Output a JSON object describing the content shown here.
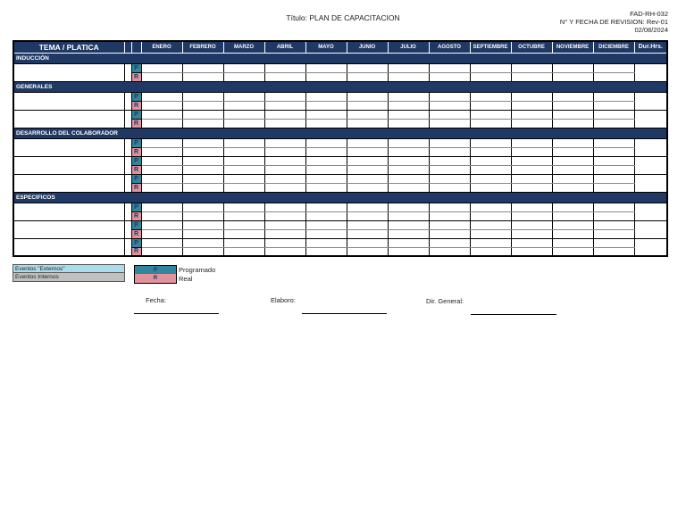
{
  "header": {
    "title": "Título: PLAN DE CAPACITACION",
    "doc_code": "FAD-RH-032",
    "revision_line": "N° Y FECHA DE REVISION: Rev-01",
    "revision_date": "02/08/2024"
  },
  "table": {
    "tema_header": "TEMA / PLATICA",
    "months": [
      "ENERO",
      "FEBRERO",
      "MARZO",
      "ABRIL",
      "MAYO",
      "JUNIO",
      "JULIO",
      "AGOSTO",
      "SEPTIEMBRE",
      "OCTUBRE",
      "NOVIEMBRE",
      "DICIEMBRE"
    ],
    "duration_header": "Dur.Hrs.",
    "marker_programado": "P",
    "marker_real": "R",
    "sections": [
      {
        "name": "INDUCCIÓN",
        "topic_rows": 1
      },
      {
        "name": "GENERALES",
        "topic_rows": 2
      },
      {
        "name": "DESARROLLO DEL COLABORADOR",
        "topic_rows": 3
      },
      {
        "name": "ESPECIFICOS",
        "topic_rows": 3
      }
    ]
  },
  "legend": {
    "externos_label": "Eventos \"Externos\"",
    "internos_label": "Eventos Internos",
    "programado_marker": "P",
    "programado_label": "Programado",
    "real_marker": "R",
    "real_label": "Real"
  },
  "signatures": {
    "fecha_label": "Fecha:",
    "elaboro_label": "Elaboro:",
    "dir_general_label": "Dir. General:"
  },
  "colors": {
    "navy": "#1f3864",
    "teal": "#31859c",
    "salmon": "#e2929b",
    "light_blue": "#aadcec",
    "gray": "#c0c0c0"
  }
}
